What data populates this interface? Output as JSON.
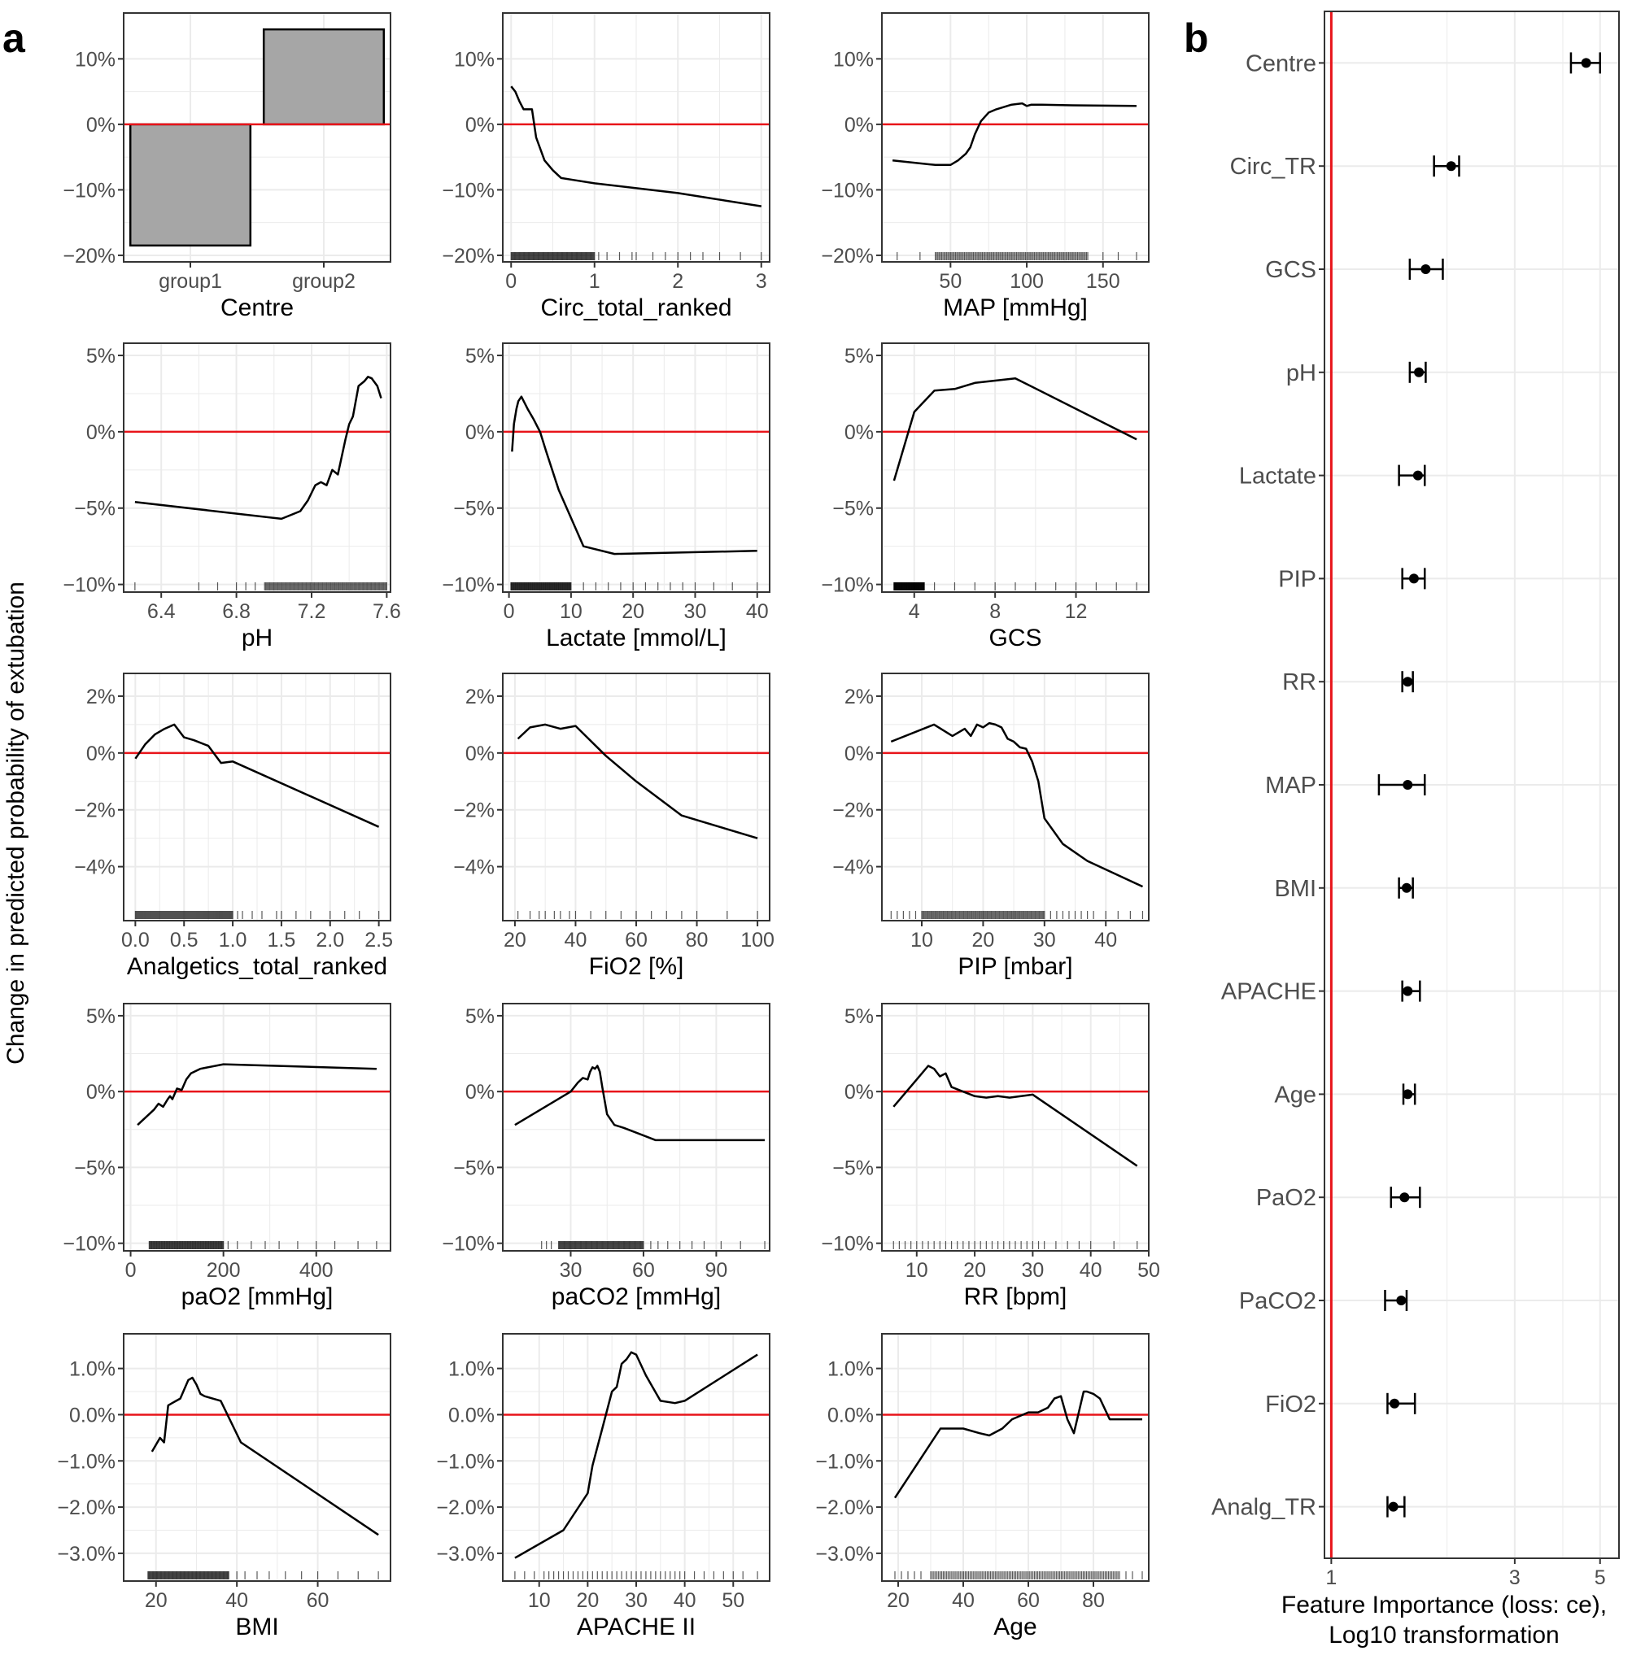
{
  "figure": {
    "panel_a_label": "a",
    "panel_b_label": "b",
    "shared_ylabel": "Change in predicted probability of extubation"
  },
  "colors": {
    "line": "#000000",
    "zero_line": "#e8141a",
    "bar_fill": "#a6a6a6",
    "grid": "#ebebeb",
    "frame": "#333333",
    "tick_text": "#4d4d4d"
  },
  "chart_data": [
    {
      "type": "bar",
      "xlabel": "Centre",
      "categories": [
        "group1",
        "group2"
      ],
      "values": [
        -18.5,
        14.5
      ],
      "ylim": [
        -21,
        17
      ],
      "yticks": [
        -20,
        -10,
        0,
        10
      ],
      "yticklabels": [
        "−20%",
        "−10%",
        "0%",
        "10%"
      ],
      "grid": true
    },
    {
      "type": "line",
      "xlabel": "Circ_total_ranked",
      "xlim": [
        -0.1,
        3.1
      ],
      "ylim": [
        -21,
        17
      ],
      "xticks": [
        0,
        1,
        2,
        3
      ],
      "xticklabels": [
        "0",
        "1",
        "2",
        "3"
      ],
      "yticks": [
        -20,
        -10,
        0,
        10
      ],
      "yticklabels": [
        "−20%",
        "−10%",
        "0%",
        "10%"
      ],
      "x": [
        0,
        0.05,
        0.1,
        0.15,
        0.25,
        0.3,
        0.4,
        0.5,
        0.6,
        0.75,
        1.0,
        2.0,
        3.0
      ],
      "y": [
        5.8,
        5.0,
        3.5,
        2.3,
        2.3,
        -2.0,
        -5.5,
        -7.0,
        -8.2,
        -8.5,
        -9.0,
        -10.5,
        -12.5
      ],
      "rug": {
        "dense": [
          0,
          1
        ],
        "sparse": [
          1.05,
          1.15,
          1.3,
          1.45,
          1.5,
          1.7,
          1.85,
          2.0,
          2.15,
          2.3,
          2.5,
          2.75,
          3.0
        ]
      }
    },
    {
      "type": "line",
      "xlabel": "MAP [mmHg]",
      "xlim": [
        5,
        180
      ],
      "ylim": [
        -21,
        17
      ],
      "xticks": [
        50,
        100,
        150
      ],
      "xticklabels": [
        "50",
        "100",
        "150"
      ],
      "yticks": [
        -20,
        -10,
        0,
        10
      ],
      "yticklabels": [
        "−20%",
        "−10%",
        "0%",
        "10%"
      ],
      "x": [
        12,
        40,
        50,
        55,
        60,
        63,
        66,
        70,
        75,
        80,
        90,
        97,
        100,
        103,
        110,
        130,
        172
      ],
      "y": [
        -5.5,
        -6.2,
        -6.2,
        -5.5,
        -4.5,
        -3.5,
        -1.5,
        0.5,
        1.8,
        2.3,
        3.0,
        3.2,
        2.8,
        3.0,
        3.0,
        2.9,
        2.8
      ],
      "rug": {
        "dense": [
          40,
          140
        ],
        "sparse": [
          15,
          30,
          150,
          160,
          172
        ]
      }
    },
    {
      "type": "line",
      "xlabel": "pH",
      "xlim": [
        6.2,
        7.62
      ],
      "ylim": [
        -10.5,
        5.8
      ],
      "xticks": [
        6.4,
        6.8,
        7.2,
        7.6
      ],
      "xticklabels": [
        "6.4",
        "6.8",
        "7.2",
        "7.6"
      ],
      "yticks": [
        -10,
        -5,
        0,
        5
      ],
      "yticklabels": [
        "−10%",
        "−5%",
        "0%",
        "5%"
      ],
      "x": [
        6.26,
        7.04,
        7.14,
        7.18,
        7.22,
        7.25,
        7.28,
        7.31,
        7.34,
        7.38,
        7.4,
        7.42,
        7.45,
        7.48,
        7.5,
        7.52,
        7.55,
        7.57
      ],
      "y": [
        -4.6,
        -5.7,
        -5.2,
        -4.5,
        -3.5,
        -3.3,
        -3.5,
        -2.5,
        -2.8,
        -0.5,
        0.5,
        1.0,
        3.0,
        3.3,
        3.6,
        3.5,
        3.0,
        2.2
      ],
      "rug": {
        "dense": [
          6.95,
          7.6
        ],
        "sparse": [
          6.26,
          6.6,
          6.7,
          6.8,
          6.85,
          6.9
        ]
      }
    },
    {
      "type": "line",
      "xlabel": "Lactate [mmol/L]",
      "xlim": [
        -1,
        42
      ],
      "ylim": [
        -10.5,
        5.8
      ],
      "xticks": [
        0,
        10,
        20,
        30,
        40
      ],
      "xticklabels": [
        "0",
        "10",
        "20",
        "30",
        "40"
      ],
      "yticks": [
        -10,
        -5,
        0,
        5
      ],
      "yticklabels": [
        "−10%",
        "−5%",
        "0%",
        "5%"
      ],
      "x": [
        0.5,
        0.8,
        1.2,
        1.5,
        2,
        3,
        4,
        5,
        6,
        8,
        12,
        17,
        40
      ],
      "y": [
        -1.3,
        0.5,
        1.5,
        2.0,
        2.3,
        1.5,
        0.8,
        0,
        -1.3,
        -3.8,
        -7.5,
        -8.0,
        -7.8
      ],
      "rug": {
        "dense": [
          0.3,
          10
        ],
        "sparse": [
          12,
          14,
          16,
          18,
          20,
          22,
          24,
          26,
          28,
          30,
          33,
          36,
          40
        ]
      }
    },
    {
      "type": "line",
      "xlabel": "GCS",
      "xlim": [
        2.4,
        15.6
      ],
      "ylim": [
        -10.5,
        5.8
      ],
      "xticks": [
        4,
        8,
        12
      ],
      "xticklabels": [
        "4",
        "8",
        "12"
      ],
      "yticks": [
        -10,
        -5,
        0,
        5
      ],
      "yticklabels": [
        "−10%",
        "−5%",
        "0%",
        "5%"
      ],
      "x": [
        3,
        4,
        5,
        6,
        7,
        9,
        15
      ],
      "y": [
        -3.2,
        1.3,
        2.7,
        2.8,
        3.2,
        3.5,
        -0.5
      ],
      "rug": {
        "dense": [
          3,
          4.5
        ],
        "sparse": [
          3,
          4,
          5,
          6,
          7,
          8,
          9,
          10,
          11,
          12,
          13,
          14,
          15
        ]
      }
    },
    {
      "type": "line",
      "xlabel": "Analgetics_total_ranked",
      "xlim": [
        -0.12,
        2.62
      ],
      "ylim": [
        -5.9,
        2.8
      ],
      "xticks": [
        0,
        0.5,
        1.0,
        1.5,
        2.0,
        2.5
      ],
      "xticklabels": [
        "0.0",
        "0.5",
        "1.0",
        "1.5",
        "2.0",
        "2.5"
      ],
      "yticks": [
        -4,
        -2,
        0,
        2
      ],
      "yticklabels": [
        "−4%",
        "−2%",
        "0%",
        "2%"
      ],
      "x": [
        0,
        0.1,
        0.2,
        0.3,
        0.4,
        0.5,
        0.6,
        0.75,
        0.88,
        1.0,
        2.5
      ],
      "y": [
        -0.2,
        0.3,
        0.65,
        0.85,
        1.0,
        0.55,
        0.45,
        0.25,
        -0.35,
        -0.3,
        -2.6
      ],
      "rug": {
        "dense": [
          0,
          1
        ],
        "sparse": [
          1.05,
          1.1,
          1.2,
          1.3,
          1.45,
          1.5,
          1.65,
          1.8,
          2.0,
          2.15,
          2.3,
          2.5
        ]
      }
    },
    {
      "type": "line",
      "xlabel": "FiO2 [%]",
      "xlim": [
        16,
        104
      ],
      "ylim": [
        -5.9,
        2.8
      ],
      "xticks": [
        20,
        40,
        60,
        80,
        100
      ],
      "xticklabels": [
        "20",
        "40",
        "60",
        "80",
        "100"
      ],
      "yticks": [
        -4,
        -2,
        0,
        2
      ],
      "yticklabels": [
        "−4%",
        "−2%",
        "0%",
        "2%"
      ],
      "x": [
        21,
        25,
        30,
        35,
        40,
        50,
        60,
        75,
        100
      ],
      "y": [
        0.5,
        0.9,
        1.0,
        0.85,
        0.95,
        -0.1,
        -1.0,
        -2.2,
        -3.0
      ],
      "rug": {
        "dense": [],
        "sparse": [
          21,
          25,
          28,
          30,
          33,
          35,
          38,
          40,
          45,
          50,
          55,
          60,
          65,
          70,
          75,
          80,
          90,
          100
        ]
      }
    },
    {
      "type": "line",
      "xlabel": "PIP [mbar]",
      "xlim": [
        3.5,
        47
      ],
      "ylim": [
        -5.9,
        2.8
      ],
      "xticks": [
        10,
        20,
        30,
        40
      ],
      "xticklabels": [
        "10",
        "20",
        "30",
        "40"
      ],
      "yticks": [
        -4,
        -2,
        0,
        2
      ],
      "yticklabels": [
        "−4%",
        "−2%",
        "0%",
        "2%"
      ],
      "x": [
        5,
        12,
        15,
        17,
        18,
        19,
        20,
        21,
        22,
        23,
        24,
        25,
        26,
        27,
        28,
        29,
        30,
        33,
        37,
        46
      ],
      "y": [
        0.4,
        1.0,
        0.6,
        0.85,
        0.6,
        1.0,
        0.9,
        1.05,
        1.0,
        0.9,
        0.5,
        0.4,
        0.2,
        0.15,
        -0.3,
        -1.0,
        -2.3,
        -3.2,
        -3.8,
        -4.7
      ],
      "rug": {
        "dense": [
          10,
          30
        ],
        "sparse": [
          5,
          6,
          7,
          8,
          9,
          31,
          32,
          33,
          34,
          35,
          36,
          37,
          38,
          40,
          42,
          44,
          46
        ]
      }
    },
    {
      "type": "line",
      "xlabel": "paO2 [mmHg]",
      "xlim": [
        -15,
        560
      ],
      "ylim": [
        -10.5,
        5.8
      ],
      "xticks": [
        0,
        200,
        400
      ],
      "xticklabels": [
        "0",
        "200",
        "400"
      ],
      "yticks": [
        -10,
        -5,
        0,
        5
      ],
      "yticklabels": [
        "−10%",
        "−5%",
        "0%",
        "5%"
      ],
      "x": [
        15,
        50,
        60,
        70,
        80,
        85,
        90,
        100,
        110,
        120,
        130,
        150,
        200,
        530
      ],
      "y": [
        -2.2,
        -1.2,
        -0.8,
        -1.0,
        -0.5,
        -0.3,
        -0.5,
        0.2,
        0.1,
        0.8,
        1.2,
        1.5,
        1.8,
        1.5
      ],
      "rug": {
        "dense": [
          40,
          200
        ],
        "sparse": [
          210,
          230,
          260,
          290,
          320,
          360,
          400,
          440,
          490,
          530
        ]
      }
    },
    {
      "type": "line",
      "xlabel": "paCO2 [mmHg]",
      "xlim": [
        2,
        112
      ],
      "ylim": [
        -10.5,
        5.8
      ],
      "xticks": [
        30,
        60,
        90
      ],
      "xticklabels": [
        "30",
        "60",
        "90"
      ],
      "yticks": [
        -10,
        -5,
        0,
        5
      ],
      "yticklabels": [
        "−10%",
        "−5%",
        "0%",
        "5%"
      ],
      "x": [
        7,
        30,
        33,
        35,
        37,
        38,
        39,
        40,
        41,
        42,
        43,
        45,
        48,
        52,
        65,
        110
      ],
      "y": [
        -2.2,
        0.0,
        0.6,
        0.9,
        0.8,
        1.3,
        1.6,
        1.5,
        1.7,
        1.3,
        0.3,
        -1.5,
        -2.2,
        -2.4,
        -3.2,
        -3.2
      ],
      "rug": {
        "dense": [
          25,
          60
        ],
        "sparse": [
          18,
          20,
          22,
          63,
          66,
          70,
          75,
          80,
          85,
          92,
          100,
          110
        ]
      }
    },
    {
      "type": "line",
      "xlabel": "RR [bpm]",
      "xlim": [
        4,
        50
      ],
      "ylim": [
        -10.5,
        5.8
      ],
      "xticks": [
        10,
        20,
        30,
        40,
        50
      ],
      "xticklabels": [
        "10",
        "20",
        "30",
        "40",
        "50"
      ],
      "yticks": [
        -10,
        -5,
        0,
        5
      ],
      "yticklabels": [
        "−10%",
        "−5%",
        "0%",
        "5%"
      ],
      "x": [
        6,
        10,
        12,
        13,
        14,
        15,
        16,
        18,
        20,
        22,
        24,
        26,
        28,
        30,
        48
      ],
      "y": [
        -1.0,
        0.8,
        1.7,
        1.5,
        1.0,
        1.2,
        0.3,
        0.0,
        -0.3,
        -0.4,
        -0.3,
        -0.4,
        -0.3,
        -0.2,
        -4.9
      ],
      "rug": {
        "dense": [],
        "sparse": [
          6,
          7,
          8,
          9,
          10,
          11,
          12,
          13,
          14,
          15,
          16,
          17,
          18,
          19,
          20,
          21,
          22,
          23,
          24,
          25,
          26,
          27,
          28,
          29,
          30,
          31,
          32,
          34,
          36,
          38,
          40,
          44,
          48
        ]
      }
    },
    {
      "type": "line",
      "xlabel": "BMI",
      "xlim": [
        12,
        78
      ],
      "ylim": [
        -3.6,
        1.75
      ],
      "xticks": [
        20,
        40,
        60
      ],
      "xticklabels": [
        "20",
        "40",
        "60"
      ],
      "yticks": [
        -3,
        -2,
        -1,
        0,
        1
      ],
      "yticklabels": [
        "−3.0%",
        "−2.0%",
        "−1.0%",
        "0.0%",
        "1.0%"
      ],
      "x": [
        19,
        21,
        22,
        23,
        24,
        25,
        26,
        27,
        28,
        29,
        30,
        31,
        32,
        34,
        36,
        41,
        75
      ],
      "y": [
        -0.8,
        -0.5,
        -0.6,
        0.2,
        0.25,
        0.3,
        0.35,
        0.55,
        0.75,
        0.8,
        0.65,
        0.45,
        0.4,
        0.35,
        0.3,
        -0.6,
        -2.6
      ],
      "rug": {
        "dense": [
          18,
          38
        ],
        "sparse": [
          40,
          42,
          45,
          48,
          52,
          56,
          60,
          65,
          70,
          75
        ]
      }
    },
    {
      "type": "line",
      "xlabel": "APACHE II",
      "xlim": [
        2.5,
        57.5
      ],
      "ylim": [
        -3.6,
        1.75
      ],
      "xticks": [
        10,
        20,
        30,
        40,
        50
      ],
      "xticklabels": [
        "10",
        "20",
        "30",
        "40",
        "50"
      ],
      "yticks": [
        -3,
        -2,
        -1,
        0,
        1
      ],
      "yticklabels": [
        "−3.0%",
        "−2.0%",
        "−1.0%",
        "0.0%",
        "1.0%"
      ],
      "x": [
        5,
        15,
        20,
        21,
        23,
        25,
        26,
        27,
        28,
        29,
        30,
        32,
        35,
        38,
        40,
        55
      ],
      "y": [
        -3.1,
        -2.5,
        -1.7,
        -1.1,
        -0.3,
        0.5,
        0.6,
        1.1,
        1.2,
        1.35,
        1.3,
        0.85,
        0.3,
        0.25,
        0.3,
        1.3
      ],
      "rug": {
        "dense": [],
        "sparse": [
          5,
          7,
          9,
          11,
          12,
          13,
          14,
          15,
          16,
          17,
          18,
          19,
          20,
          21,
          22,
          23,
          24,
          25,
          26,
          27,
          28,
          29,
          30,
          31,
          32,
          33,
          34,
          35,
          36,
          37,
          38,
          39,
          40,
          42,
          44,
          46,
          48,
          50,
          52,
          55
        ]
      }
    },
    {
      "type": "line",
      "xlabel": "Age",
      "xlim": [
        15,
        97
      ],
      "ylim": [
        -3.6,
        1.75
      ],
      "xticks": [
        20,
        40,
        60,
        80
      ],
      "xticklabels": [
        "20",
        "40",
        "60",
        "80"
      ],
      "yticks": [
        -3,
        -2,
        -1,
        0,
        1
      ],
      "yticklabels": [
        "−3.0%",
        "−2.0%",
        "−1.0%",
        "0.0%",
        "1.0%"
      ],
      "x": [
        19,
        33,
        40,
        45,
        48,
        52,
        55,
        60,
        63,
        66,
        68,
        70,
        72,
        74,
        77,
        78,
        80,
        82,
        83,
        85,
        95
      ],
      "y": [
        -1.8,
        -0.3,
        -0.3,
        -0.4,
        -0.45,
        -0.3,
        -0.1,
        0.05,
        0.05,
        0.15,
        0.35,
        0.4,
        -0.1,
        -0.4,
        0.5,
        0.5,
        0.45,
        0.35,
        0.2,
        -0.1,
        -0.1
      ],
      "rug": {
        "dense": [
          30,
          88
        ],
        "sparse": [
          19,
          21,
          23,
          25,
          27,
          90,
          92,
          95
        ]
      }
    },
    {
      "type": "scatter",
      "xlabel": "Feature Importance (loss: ce),",
      "xlabel2": "Log10 transformation",
      "x_scale": "log10",
      "xlim": [
        0.96,
        5.6
      ],
      "reference_line": 1,
      "xticks": [
        1,
        3,
        5
      ],
      "xticklabels": [
        "1",
        "3",
        "5"
      ],
      "categories": [
        "Centre",
        "Circ_TR",
        "GCS",
        "pH",
        "Lactate",
        "PIP",
        "RR",
        "MAP",
        "BMI",
        "APACHE",
        "Age",
        "PaO2",
        "PaCO2",
        "FiO2",
        "Analg_TR"
      ],
      "values": [
        4.6,
        2.05,
        1.76,
        1.69,
        1.68,
        1.64,
        1.58,
        1.58,
        1.57,
        1.58,
        1.58,
        1.55,
        1.52,
        1.46,
        1.45
      ],
      "lower": [
        4.2,
        1.85,
        1.6,
        1.6,
        1.5,
        1.53,
        1.53,
        1.33,
        1.5,
        1.53,
        1.54,
        1.43,
        1.38,
        1.4,
        1.4
      ],
      "upper": [
        5.0,
        2.15,
        1.95,
        1.76,
        1.75,
        1.75,
        1.63,
        1.75,
        1.63,
        1.7,
        1.65,
        1.7,
        1.57,
        1.65,
        1.55
      ]
    }
  ]
}
